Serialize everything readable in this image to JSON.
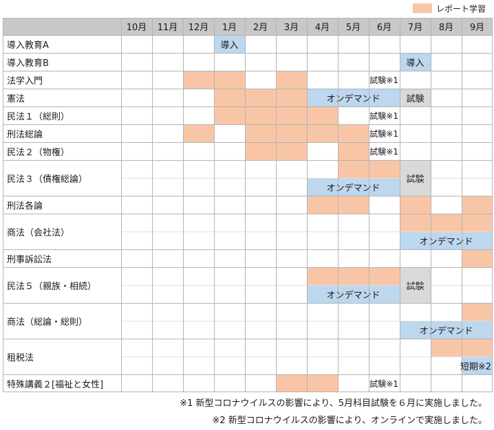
{
  "legend": {
    "label": "レポート学習",
    "color": "#f8c6a7"
  },
  "months": [
    "10月",
    "11月",
    "12月",
    "1月",
    "2月",
    "3月",
    "4月",
    "5月",
    "6月",
    "7月",
    "8月",
    "9月"
  ],
  "labels": {
    "donyu": "導入",
    "shiken": "試験",
    "shiken_x1": "試験※1",
    "ondemand": "オンデマンド",
    "tanki_x2": "短期※2"
  },
  "subjects": [
    "導入教育A",
    "導入教育B",
    "法学入門",
    "憲法",
    "民法１（総則）",
    "刑法総論",
    "民法２（物権）",
    "民法３（債権総論）",
    "刑法各論",
    "商法（会社法）",
    "刑事訴訟法",
    "民法５（親族・相続）",
    "商法（総論・総則）",
    "租税法",
    "特殊講義２[福祉と女性]"
  ],
  "notes": [
    "※1 新型コロナウイルスの影響により、5月科目試験を６月に実施しました。",
    "※2 新型コロナウイルスの影響により、オンラインで実施しました。"
  ],
  "colors": {
    "report": "#f8c6a7",
    "ondemand": "#bdd7ee",
    "exam": "#d9d9d9",
    "header": "#c8c8c8",
    "border": "#b3b3b3"
  }
}
